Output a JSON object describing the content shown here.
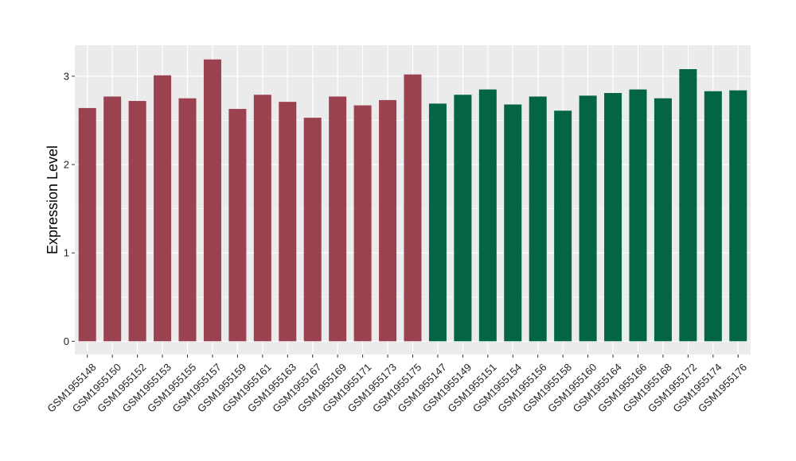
{
  "chart_data": {
    "type": "bar",
    "title": "",
    "xlabel": "",
    "ylabel": "Expression Level",
    "ylim": [
      -0.15,
      3.35
    ],
    "yticks": [
      0,
      1,
      2,
      3
    ],
    "grid": true,
    "legend": "none",
    "categories": [
      "GSM1955148",
      "GSM1955150",
      "GSM1955152",
      "GSM1955153",
      "GSM1955155",
      "GSM1955157",
      "GSM1955159",
      "GSM1955161",
      "GSM1955163",
      "GSM1955167",
      "GSM1955169",
      "GSM1955171",
      "GSM1955173",
      "GSM1955175",
      "GSM1955147",
      "GSM1955149",
      "GSM1955151",
      "GSM1955154",
      "GSM1955156",
      "GSM1955158",
      "GSM1955160",
      "GSM1955164",
      "GSM1955166",
      "GSM1955168",
      "GSM1955172",
      "GSM1955174",
      "GSM1955176"
    ],
    "values": [
      2.64,
      2.77,
      2.72,
      3.01,
      2.75,
      3.19,
      2.63,
      2.79,
      2.71,
      2.53,
      2.77,
      2.67,
      2.73,
      3.02,
      2.69,
      2.79,
      2.85,
      2.68,
      2.77,
      2.61,
      2.78,
      2.81,
      2.85,
      2.75,
      3.08,
      2.83,
      2.84
    ],
    "bar_colors": [
      "#9b4250",
      "#9b4250",
      "#9b4250",
      "#9b4250",
      "#9b4250",
      "#9b4250",
      "#9b4250",
      "#9b4250",
      "#9b4250",
      "#9b4250",
      "#9b4250",
      "#9b4250",
      "#9b4250",
      "#9b4250",
      "#036546",
      "#036546",
      "#036546",
      "#036546",
      "#036546",
      "#036546",
      "#036546",
      "#036546",
      "#036546",
      "#036546",
      "#036546",
      "#036546",
      "#036546"
    ],
    "panel_background": "#ebebeb",
    "grid_color": "#ffffff"
  }
}
